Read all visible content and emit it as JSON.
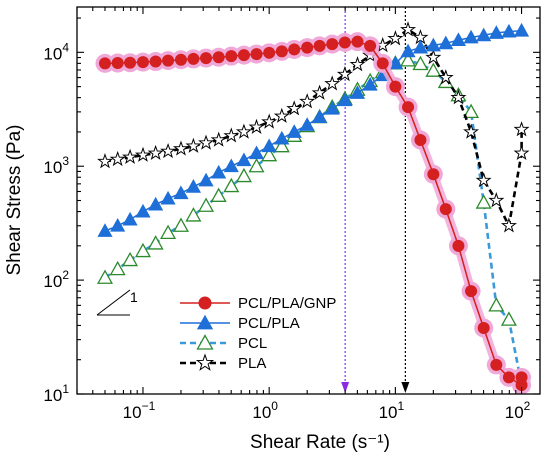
{
  "chart_data": {
    "type": "line",
    "xlabel": "Shear Rate (s⁻¹)",
    "ylabel": "Shear Stress (Pa)",
    "xscale": "log",
    "yscale": "log",
    "xlim": [
      0.03,
      140
    ],
    "ylim": [
      10,
      25000
    ],
    "x_ticks": [
      {
        "value": 0.1,
        "base": "10",
        "exp": "−1"
      },
      {
        "value": 1,
        "base": "10",
        "exp": "0"
      },
      {
        "value": 10,
        "base": "10",
        "exp": "1"
      },
      {
        "value": 100,
        "base": "10",
        "exp": "2"
      }
    ],
    "y_ticks": [
      {
        "value": 10,
        "base": "10",
        "exp": "1"
      },
      {
        "value": 100,
        "base": "10",
        "exp": "2"
      },
      {
        "value": 1000,
        "base": "10",
        "exp": "3"
      },
      {
        "value": 10000,
        "base": "10",
        "exp": "4"
      }
    ],
    "grid": false,
    "legend_position": "lower-left",
    "slope_annotation": "1",
    "reference_lines_x": [
      {
        "x": 4.0,
        "color": "#8a2be2",
        "style": "dotted"
      },
      {
        "x": 12.0,
        "color": "#000000",
        "style": "dotted"
      }
    ],
    "series": [
      {
        "name": "PCL/PLA/GNP",
        "color": "#d42020",
        "halo": "#f0a8d8",
        "marker": "circle",
        "line_style": "solid",
        "x": [
          0.05,
          0.063,
          0.079,
          0.1,
          0.126,
          0.158,
          0.2,
          0.251,
          0.316,
          0.398,
          0.501,
          0.631,
          0.794,
          1.0,
          1.26,
          1.58,
          2.0,
          2.51,
          3.16,
          3.98,
          5.01,
          6.31,
          7.94,
          10.0,
          12.6,
          15.8,
          20.0,
          25.1,
          31.6,
          39.8,
          50.1,
          63.1,
          79.4,
          100,
          100
        ],
        "y": [
          8000,
          8050,
          8100,
          8200,
          8300,
          8450,
          8600,
          8750,
          8900,
          9050,
          9250,
          9450,
          9650,
          9900,
          10200,
          10600,
          11000,
          11400,
          11800,
          12200,
          12400,
          11400,
          8000,
          5000,
          3300,
          1700,
          850,
          420,
          200,
          80,
          38,
          18,
          14,
          12,
          14
        ]
      },
      {
        "name": "PCL/PLA",
        "color": "#1f6fd8",
        "marker": "triangle",
        "line_style": "solid",
        "x": [
          0.05,
          0.063,
          0.079,
          0.1,
          0.126,
          0.158,
          0.2,
          0.251,
          0.316,
          0.398,
          0.501,
          0.631,
          0.794,
          1.0,
          1.26,
          1.58,
          2.0,
          2.51,
          3.16,
          3.98,
          5.01,
          6.31,
          7.94,
          10.0,
          12.6,
          15.8,
          20.0,
          25.1,
          31.6,
          39.8,
          50.1,
          63.1,
          79.4,
          100
        ],
        "y": [
          270,
          300,
          340,
          400,
          460,
          520,
          580,
          660,
          750,
          880,
          1000,
          1130,
          1300,
          1500,
          1750,
          2000,
          2300,
          2700,
          3200,
          3800,
          4400,
          5200,
          6300,
          8000,
          10200,
          11000,
          11500,
          12000,
          12800,
          13500,
          14100,
          14800,
          15200,
          15500
        ]
      },
      {
        "name": "PCL",
        "color": "#2b8a2b",
        "line_color": "#3a9ad9",
        "marker": "triangle-open",
        "line_style": "dashed",
        "x": [
          0.05,
          0.063,
          0.079,
          0.1,
          0.126,
          0.158,
          0.2,
          0.251,
          0.316,
          0.398,
          0.501,
          0.631,
          0.794,
          1.0,
          1.26,
          1.58,
          2.0,
          2.51,
          3.16,
          3.98,
          5.01,
          6.31,
          7.94,
          10.0,
          12.6,
          15.8,
          20.0,
          25.1,
          31.6,
          39.8,
          50.1,
          63.1,
          79.4,
          100
        ],
        "y": [
          105,
          125,
          150,
          180,
          210,
          260,
          300,
          370,
          450,
          550,
          670,
          820,
          1000,
          1250,
          1500,
          1850,
          2250,
          2700,
          3300,
          3900,
          4700,
          5600,
          6700,
          8000,
          8500,
          7900,
          6900,
          5500,
          4200,
          3000,
          480,
          60,
          45,
          12
        ]
      },
      {
        "name": "PLA",
        "color": "#000000",
        "marker": "star-open",
        "line_style": "dashed",
        "x": [
          0.05,
          0.063,
          0.079,
          0.1,
          0.126,
          0.158,
          0.2,
          0.251,
          0.316,
          0.398,
          0.501,
          0.631,
          0.794,
          1.0,
          1.26,
          1.58,
          2.0,
          2.51,
          3.16,
          3.98,
          5.01,
          6.31,
          7.94,
          10.0,
          12.6,
          15.8,
          20.0,
          25.1,
          31.6,
          39.8,
          50.1,
          63.1,
          79.4,
          100,
          100
        ],
        "y": [
          1100,
          1150,
          1200,
          1250,
          1300,
          1350,
          1420,
          1500,
          1600,
          1700,
          1850,
          2000,
          2200,
          2450,
          2750,
          3200,
          3700,
          4400,
          5300,
          6400,
          7800,
          9400,
          11500,
          13200,
          15800,
          13500,
          9000,
          6000,
          4000,
          2000,
          750,
          500,
          300,
          1300,
          2100
        ]
      }
    ]
  }
}
